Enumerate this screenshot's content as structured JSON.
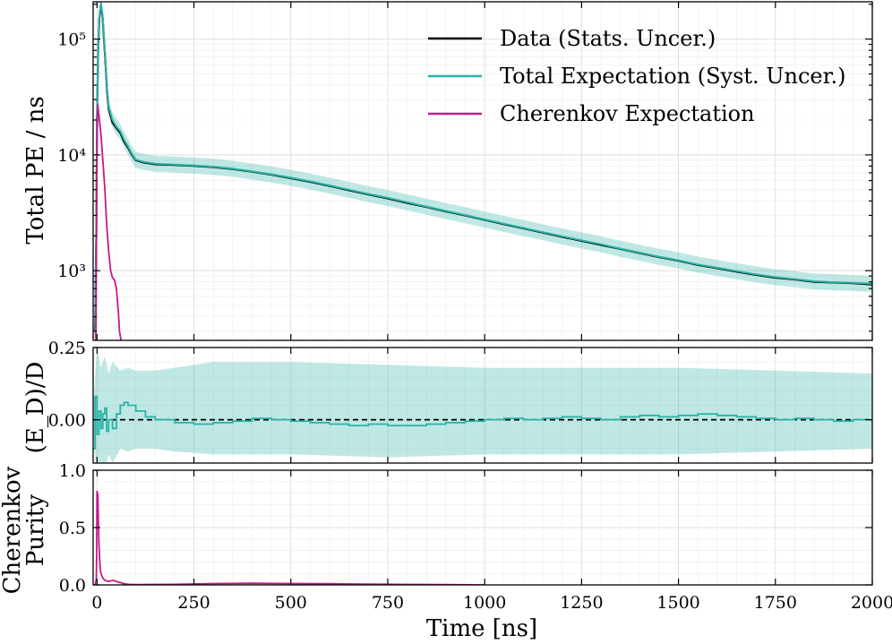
{
  "chart_data": {
    "type": "line",
    "x_axis": {
      "label": "Time [ns]",
      "range": [
        -10,
        2000
      ],
      "ticks": [
        0,
        250,
        500,
        750,
        1000,
        1250,
        1500,
        1750,
        2000
      ],
      "tick_labels": [
        "0",
        "250",
        "500",
        "750",
        "1000",
        "1250",
        "1500",
        "1750",
        "2000"
      ]
    },
    "panels": [
      {
        "id": "top",
        "ylabel": "Total PE / ns",
        "yscale": "log",
        "ylim": [
          250,
          210000
        ],
        "yticks": [
          1000,
          10000,
          100000
        ],
        "ytick_labels": [
          "10³",
          "10⁴",
          "10⁵"
        ],
        "legend": {
          "position": "top-right",
          "entries": [
            {
              "label": "Data (Stats. Uncer.)",
              "color": "#000000"
            },
            {
              "label": "Total Expectation (Syst. Uncer.)",
              "color": "#2ab3a6"
            },
            {
              "label": "Cherenkov Expectation",
              "color": "#c8188c"
            }
          ]
        },
        "series": [
          {
            "name": "Data (Stats. Uncer.)",
            "color": "#000000",
            "x": [
              -10,
              -5,
              -2,
              0,
              3,
              6,
              10,
              14,
              18,
              22,
              26,
              30,
              40,
              50,
              60,
              70,
              80,
              90,
              100,
              120,
              150,
              200,
              250,
              300,
              350,
              400,
              450,
              500,
              550,
              600,
              650,
              700,
              750,
              800,
              850,
              900,
              950,
              1000,
              1050,
              1100,
              1150,
              1200,
              1250,
              1300,
              1350,
              1400,
              1450,
              1500,
              1550,
              1600,
              1650,
              1700,
              1750,
              1800,
              1850,
              1900,
              1950,
              2000
            ],
            "y": [
              300,
              310,
              2000,
              20000,
              80000,
              150000,
              200000,
              160000,
              100000,
              60000,
              35000,
              25000,
              19000,
              17000,
              15500,
              13000,
              11500,
              10000,
              9000,
              8600,
              8300,
              8200,
              8050,
              7850,
              7550,
              7150,
              6750,
              6300,
              5850,
              5400,
              4950,
              4550,
              4200,
              3850,
              3550,
              3250,
              3000,
              2750,
              2520,
              2320,
              2130,
              1960,
              1810,
              1670,
              1540,
              1420,
              1310,
              1220,
              1120,
              1050,
              980,
              920,
              870,
              840,
              800,
              790,
              780,
              760
            ]
          },
          {
            "name": "Total Expectation (Syst. Uncer.)",
            "color": "#2ab3a6",
            "band_frac_low": 0.85,
            "band_frac_high": 1.17,
            "x": [
              -10,
              -5,
              -2,
              0,
              3,
              6,
              10,
              14,
              18,
              22,
              26,
              30,
              40,
              50,
              60,
              70,
              80,
              90,
              100,
              120,
              150,
              200,
              250,
              300,
              350,
              400,
              450,
              500,
              550,
              600,
              650,
              700,
              750,
              800,
              850,
              900,
              950,
              1000,
              1050,
              1100,
              1150,
              1200,
              1250,
              1300,
              1350,
              1400,
              1450,
              1500,
              1550,
              1600,
              1650,
              1700,
              1750,
              1800,
              1850,
              1900,
              1950,
              2000
            ],
            "y": [
              300,
              310,
              2100,
              21000,
              82000,
              155000,
              205000,
              165000,
              105000,
              62000,
              37000,
              26000,
              20000,
              17500,
              16000,
              13500,
              11800,
              10200,
              9100,
              8700,
              8400,
              8250,
              8100,
              7900,
              7600,
              7200,
              6800,
              6350,
              5900,
              5450,
              5000,
              4600,
              4250,
              3900,
              3580,
              3280,
              3020,
              2770,
              2540,
              2340,
              2150,
              1980,
              1830,
              1690,
              1550,
              1430,
              1320,
              1230,
              1130,
              1060,
              990,
              930,
              880,
              845,
              810,
              795,
              785,
              770
            ]
          },
          {
            "name": "Cherenkov Expectation",
            "color": "#c8188c",
            "x": [
              -3,
              0,
              2,
              5,
              10,
              15,
              20,
              25,
              30,
              35,
              40,
              45,
              50,
              55,
              58,
              62
            ],
            "y": [
              250,
              12000,
              27000,
              22000,
              15000,
              9000,
              5200,
              2500,
              1500,
              1000,
              870,
              830,
              700,
              450,
              300,
              250
            ]
          }
        ]
      },
      {
        "id": "middle",
        "ylabel": "(E_D)/D",
        "ylim": [
          -0.15,
          0.25
        ],
        "yticks": [
          0.0,
          0.25
        ],
        "ytick_labels": [
          "0.00",
          "0.25"
        ],
        "reference_line": 0.0,
        "series": [
          {
            "name": "(E-D)/D",
            "color": "#2ab3a6",
            "x": [
              -10,
              -5,
              0,
              5,
              10,
              15,
              20,
              25,
              30,
              40,
              50,
              60,
              70,
              80,
              100,
              125,
              150,
              200,
              250,
              300,
              350,
              400,
              450,
              500,
              550,
              600,
              650,
              700,
              750,
              800,
              850,
              900,
              950,
              1000,
              1050,
              1100,
              1150,
              1200,
              1250,
              1300,
              1350,
              1400,
              1450,
              1500,
              1550,
              1600,
              1650,
              1700,
              1750,
              1800,
              1850,
              1900,
              1950,
              2000
            ],
            "y": [
              -0.1,
              0.08,
              -0.05,
              0.03,
              -0.03,
              0.02,
              0.04,
              -0.04,
              0.0,
              -0.03,
              0.02,
              0.05,
              0.06,
              0.05,
              0.03,
              0.01,
              0.0,
              -0.01,
              -0.015,
              -0.01,
              -0.005,
              0.005,
              0.0,
              -0.005,
              -0.01,
              -0.015,
              -0.02,
              -0.015,
              -0.02,
              -0.02,
              -0.015,
              -0.01,
              -0.005,
              0.0,
              0.005,
              0.0,
              0.005,
              0.01,
              0.005,
              0.0,
              0.01,
              0.015,
              0.01,
              0.015,
              0.02,
              0.015,
              0.01,
              0.005,
              0.0,
              0.005,
              0.0,
              -0.005,
              0.0,
              -0.01
            ]
          }
        ],
        "band": {
          "x": [
            -10,
            0,
            10,
            20,
            30,
            40,
            60,
            80,
            100,
            150,
            200,
            300,
            500,
            750,
            1000,
            1250,
            1500,
            1750,
            2000
          ],
          "low": [
            -0.05,
            -0.2,
            -0.15,
            -0.18,
            -0.12,
            -0.15,
            -0.1,
            -0.11,
            -0.1,
            -0.1,
            -0.11,
            -0.12,
            -0.12,
            -0.13,
            -0.12,
            -0.12,
            -0.12,
            -0.11,
            -0.1
          ],
          "high": [
            0.05,
            0.25,
            0.18,
            0.22,
            0.16,
            0.2,
            0.17,
            0.18,
            0.17,
            0.17,
            0.18,
            0.2,
            0.2,
            0.19,
            0.18,
            0.18,
            0.18,
            0.17,
            0.16
          ]
        }
      },
      {
        "id": "bottom",
        "ylabel_lines": [
          "Cherenkov",
          "Purity"
        ],
        "ylim": [
          0.0,
          1.0
        ],
        "yticks": [
          0.0,
          0.5,
          1.0
        ],
        "ytick_labels": [
          "0.0",
          "0.5",
          "1.0"
        ],
        "series": [
          {
            "name": "Cherenkov Purity",
            "color": "#c8188c",
            "x": [
              -5,
              -2,
              -1,
              0,
              1,
              2,
              3,
              5,
              8,
              10,
              15,
              20,
              30,
              40,
              50,
              60,
              70,
              80,
              100,
              200,
              300,
              400,
              500,
              600,
              700,
              800,
              900,
              1000
            ],
            "y": [
              0.0,
              0.05,
              0.25,
              0.82,
              0.78,
              0.8,
              0.65,
              0.35,
              0.15,
              0.1,
              0.06,
              0.04,
              0.03,
              0.04,
              0.03,
              0.02,
              0.01,
              0.005,
              0.003,
              0.005,
              0.012,
              0.014,
              0.012,
              0.01,
              0.006,
              0.004,
              0.002,
              0.0
            ]
          }
        ]
      }
    ]
  }
}
